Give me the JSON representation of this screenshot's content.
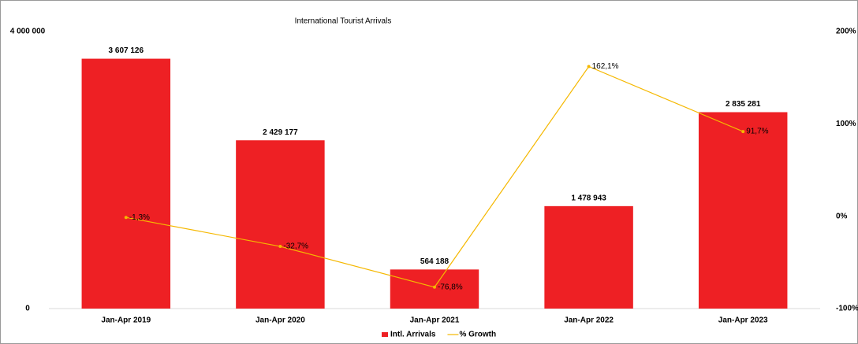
{
  "chart_data": {
    "type": "bar",
    "title": "International Tourist Arrivals",
    "categories": [
      "Jan-Apr 2019",
      "Jan-Apr 2020",
      "Jan-Apr 2021",
      "Jan-Apr 2022",
      "Jan-Apr 2023"
    ],
    "series": [
      {
        "name": "Intl. Arrivals",
        "type": "bar",
        "color": "#ee2024",
        "axis": "y",
        "values": [
          3607126,
          2429177,
          564188,
          1478943,
          2835281
        ],
        "value_labels": [
          "3 607 126",
          "2 429 177",
          "564 188",
          "1 478 943",
          "2 835 281"
        ]
      },
      {
        "name": "% Growth",
        "type": "line",
        "color": "#f5b800",
        "axis": "y2",
        "values": [
          -1.3,
          -32.7,
          -76.8,
          162.1,
          91.7
        ],
        "value_labels": [
          "-1,3%",
          "-32,7%",
          "-76,8%",
          "162,1%",
          "91,7%"
        ]
      }
    ],
    "ylim": [
      0,
      4000000
    ],
    "yticks": [
      {
        "value": 4000000,
        "label": "4 000 000"
      },
      0
    ],
    "y2lim": [
      -100,
      200
    ],
    "y2ticks": [
      {
        "value": 200,
        "label": "200%"
      },
      {
        "value": 100,
        "label": "100%"
      },
      {
        "value": 0,
        "label": "0%"
      },
      {
        "value": -100,
        "label": "-100%"
      }
    ],
    "grid": false,
    "legend": "bottom"
  }
}
